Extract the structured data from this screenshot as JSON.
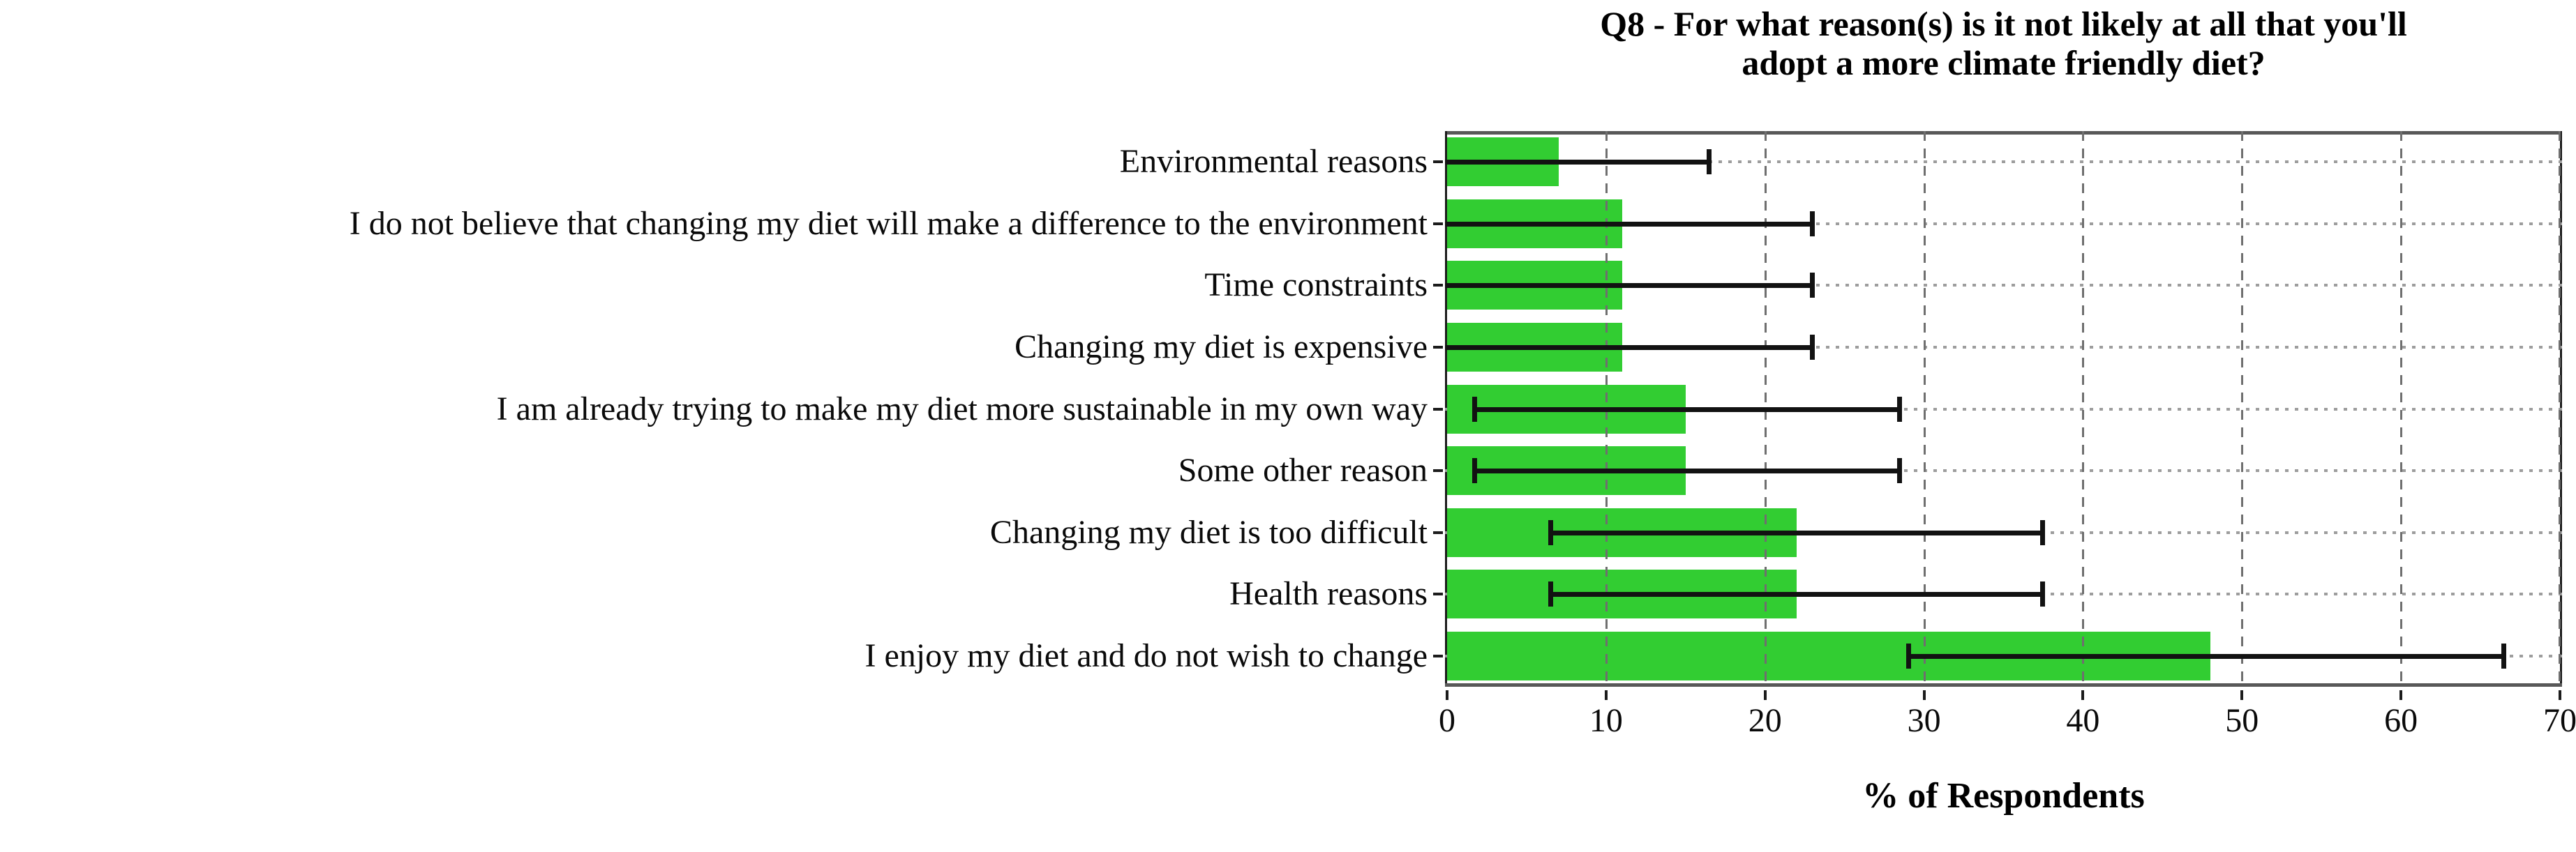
{
  "chart_data": {
    "type": "bar",
    "orientation": "horizontal",
    "title_lines": [
      "Q8 - For what reason(s) is it not likely at all that you'll",
      "adopt a more climate friendly diet?"
    ],
    "xlabel": "% of Respondents",
    "xlim": [
      0,
      70
    ],
    "xticks": [
      0,
      10,
      20,
      30,
      40,
      50,
      60,
      70
    ],
    "grid": {
      "vertical": "dashed",
      "horizontal": "dotted",
      "enabled": true
    },
    "bar_color": "#32CD32",
    "error_color": "#121212",
    "legend": null,
    "categories": [
      "Environmental reasons",
      "I do not believe that changing my diet will make a difference to the environment",
      "Time constraints",
      "Changing my diet is expensive",
      "I am already trying to make my diet more sustainable in my own way",
      "Some other reason",
      "Changing my diet is too difficult",
      "Health reasons",
      "I enjoy my diet and do not wish to change"
    ],
    "values": [
      7,
      11,
      11,
      11,
      15,
      15,
      22,
      22,
      48
    ],
    "error_low": [
      0,
      0,
      0,
      0,
      1.7,
      1.7,
      6.5,
      6.5,
      29
    ],
    "error_low_cap_visible": [
      false,
      false,
      false,
      false,
      true,
      true,
      true,
      true,
      true
    ],
    "error_high": [
      16.5,
      23,
      23,
      23,
      28.5,
      28.5,
      37.5,
      37.5,
      66.5
    ]
  }
}
